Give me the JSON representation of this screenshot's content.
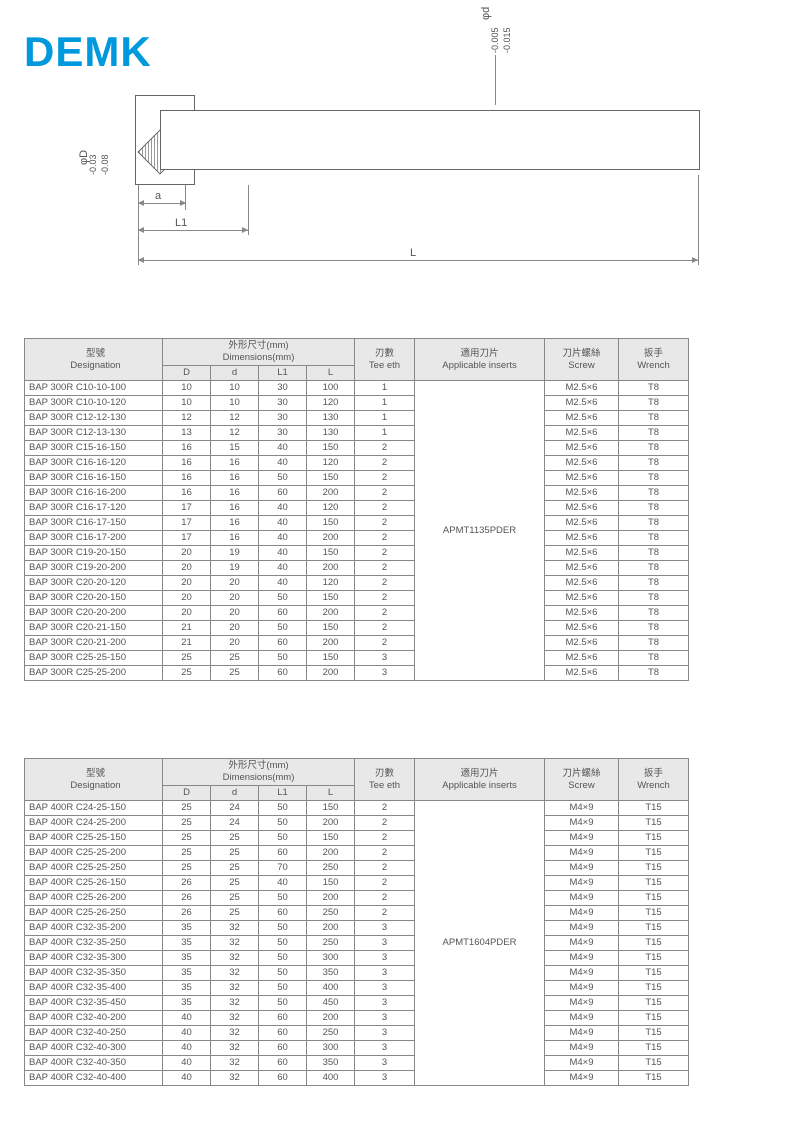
{
  "brand": "DEMK",
  "diagram": {
    "label_phi_D": "φD",
    "label_tol_D": "-0.03 / -0.08",
    "label_phi_d": "φd",
    "label_tol_d": "-0.005 / -0.015",
    "label_a": "a",
    "label_L1": "L1",
    "label_L": "L"
  },
  "headers": {
    "designation_cn": "型號",
    "designation_en": "Designation",
    "dimensions_cn": "外形尺寸(mm)",
    "dimensions_en": "Dimensions(mm)",
    "D": "D",
    "d": "d",
    "L1": "L1",
    "L": "L",
    "teeth_cn": "刃數",
    "teeth_en": "Tee eth",
    "inserts_cn": "適用刀片",
    "inserts_en": "Applicable inserts",
    "screw_cn": "刀片螺絲",
    "screw_en": "Screw",
    "wrench_cn": "扳手",
    "wrench_en": "Wrench"
  },
  "table1": {
    "insert": "APMT1135PDER",
    "rows": [
      [
        "BAP 300R C10-10-100",
        "10",
        "10",
        "30",
        "100",
        "1",
        "M2.5×6",
        "T8"
      ],
      [
        "BAP 300R C10-10-120",
        "10",
        "10",
        "30",
        "120",
        "1",
        "M2.5×6",
        "T8"
      ],
      [
        "BAP 300R C12-12-130",
        "12",
        "12",
        "30",
        "130",
        "1",
        "M2.5×6",
        "T8"
      ],
      [
        "BAP 300R C12-13-130",
        "13",
        "12",
        "30",
        "130",
        "1",
        "M2.5×6",
        "T8"
      ],
      [
        "BAP 300R C15-16-150",
        "16",
        "15",
        "40",
        "150",
        "2",
        "M2.5×6",
        "T8"
      ],
      [
        "BAP 300R C16-16-120",
        "16",
        "16",
        "40",
        "120",
        "2",
        "M2.5×6",
        "T8"
      ],
      [
        "BAP 300R C16-16-150",
        "16",
        "16",
        "50",
        "150",
        "2",
        "M2.5×6",
        "T8"
      ],
      [
        "BAP 300R C16-16-200",
        "16",
        "16",
        "60",
        "200",
        "2",
        "M2.5×6",
        "T8"
      ],
      [
        "BAP 300R C16-17-120",
        "17",
        "16",
        "40",
        "120",
        "2",
        "M2.5×6",
        "T8"
      ],
      [
        "BAP 300R C16-17-150",
        "17",
        "16",
        "40",
        "150",
        "2",
        "M2.5×6",
        "T8"
      ],
      [
        "BAP 300R C16-17-200",
        "17",
        "16",
        "40",
        "200",
        "2",
        "M2.5×6",
        "T8"
      ],
      [
        "BAP 300R C19-20-150",
        "20",
        "19",
        "40",
        "150",
        "2",
        "M2.5×6",
        "T8"
      ],
      [
        "BAP 300R C19-20-200",
        "20",
        "19",
        "40",
        "200",
        "2",
        "M2.5×6",
        "T8"
      ],
      [
        "BAP 300R C20-20-120",
        "20",
        "20",
        "40",
        "120",
        "2",
        "M2.5×6",
        "T8"
      ],
      [
        "BAP 300R C20-20-150",
        "20",
        "20",
        "50",
        "150",
        "2",
        "M2.5×6",
        "T8"
      ],
      [
        "BAP 300R C20-20-200",
        "20",
        "20",
        "60",
        "200",
        "2",
        "M2.5×6",
        "T8"
      ],
      [
        "BAP 300R C20-21-150",
        "21",
        "20",
        "50",
        "150",
        "2",
        "M2.5×6",
        "T8"
      ],
      [
        "BAP 300R C20-21-200",
        "21",
        "20",
        "60",
        "200",
        "2",
        "M2.5×6",
        "T8"
      ],
      [
        "BAP 300R C25-25-150",
        "25",
        "25",
        "50",
        "150",
        "3",
        "M2.5×6",
        "T8"
      ],
      [
        "BAP 300R C25-25-200",
        "25",
        "25",
        "60",
        "200",
        "3",
        "M2.5×6",
        "T8"
      ]
    ]
  },
  "table2": {
    "insert": "APMT1604PDER",
    "rows": [
      [
        "BAP 400R C24-25-150",
        "25",
        "24",
        "50",
        "150",
        "2",
        "M4×9",
        "T15"
      ],
      [
        "BAP 400R C24-25-200",
        "25",
        "24",
        "50",
        "200",
        "2",
        "M4×9",
        "T15"
      ],
      [
        "BAP 400R C25-25-150",
        "25",
        "25",
        "50",
        "150",
        "2",
        "M4×9",
        "T15"
      ],
      [
        "BAP 400R C25-25-200",
        "25",
        "25",
        "60",
        "200",
        "2",
        "M4×9",
        "T15"
      ],
      [
        "BAP 400R C25-25-250",
        "25",
        "25",
        "70",
        "250",
        "2",
        "M4×9",
        "T15"
      ],
      [
        "BAP 400R C25-26-150",
        "26",
        "25",
        "40",
        "150",
        "2",
        "M4×9",
        "T15"
      ],
      [
        "BAP 400R C25-26-200",
        "26",
        "25",
        "50",
        "200",
        "2",
        "M4×9",
        "T15"
      ],
      [
        "BAP 400R C25-26-250",
        "26",
        "25",
        "60",
        "250",
        "2",
        "M4×9",
        "T15"
      ],
      [
        "BAP 400R C32-35-200",
        "35",
        "32",
        "50",
        "200",
        "3",
        "M4×9",
        "T15"
      ],
      [
        "BAP 400R C32-35-250",
        "35",
        "32",
        "50",
        "250",
        "3",
        "M4×9",
        "T15"
      ],
      [
        "BAP 400R C32-35-300",
        "35",
        "32",
        "50",
        "300",
        "3",
        "M4×9",
        "T15"
      ],
      [
        "BAP 400R C32-35-350",
        "35",
        "32",
        "50",
        "350",
        "3",
        "M4×9",
        "T15"
      ],
      [
        "BAP 400R C32-35-400",
        "35",
        "32",
        "50",
        "400",
        "3",
        "M4×9",
        "T15"
      ],
      [
        "BAP 400R C32-35-450",
        "35",
        "32",
        "50",
        "450",
        "3",
        "M4×9",
        "T15"
      ],
      [
        "BAP 400R C32-40-200",
        "40",
        "32",
        "60",
        "200",
        "3",
        "M4×9",
        "T15"
      ],
      [
        "BAP 400R C32-40-250",
        "40",
        "32",
        "60",
        "250",
        "3",
        "M4×9",
        "T15"
      ],
      [
        "BAP 400R C32-40-300",
        "40",
        "32",
        "60",
        "300",
        "3",
        "M4×9",
        "T15"
      ],
      [
        "BAP 400R C32-40-350",
        "40",
        "32",
        "60",
        "350",
        "3",
        "M4×9",
        "T15"
      ],
      [
        "BAP 400R C32-40-400",
        "40",
        "32",
        "60",
        "400",
        "3",
        "M4×9",
        "T15"
      ]
    ]
  }
}
